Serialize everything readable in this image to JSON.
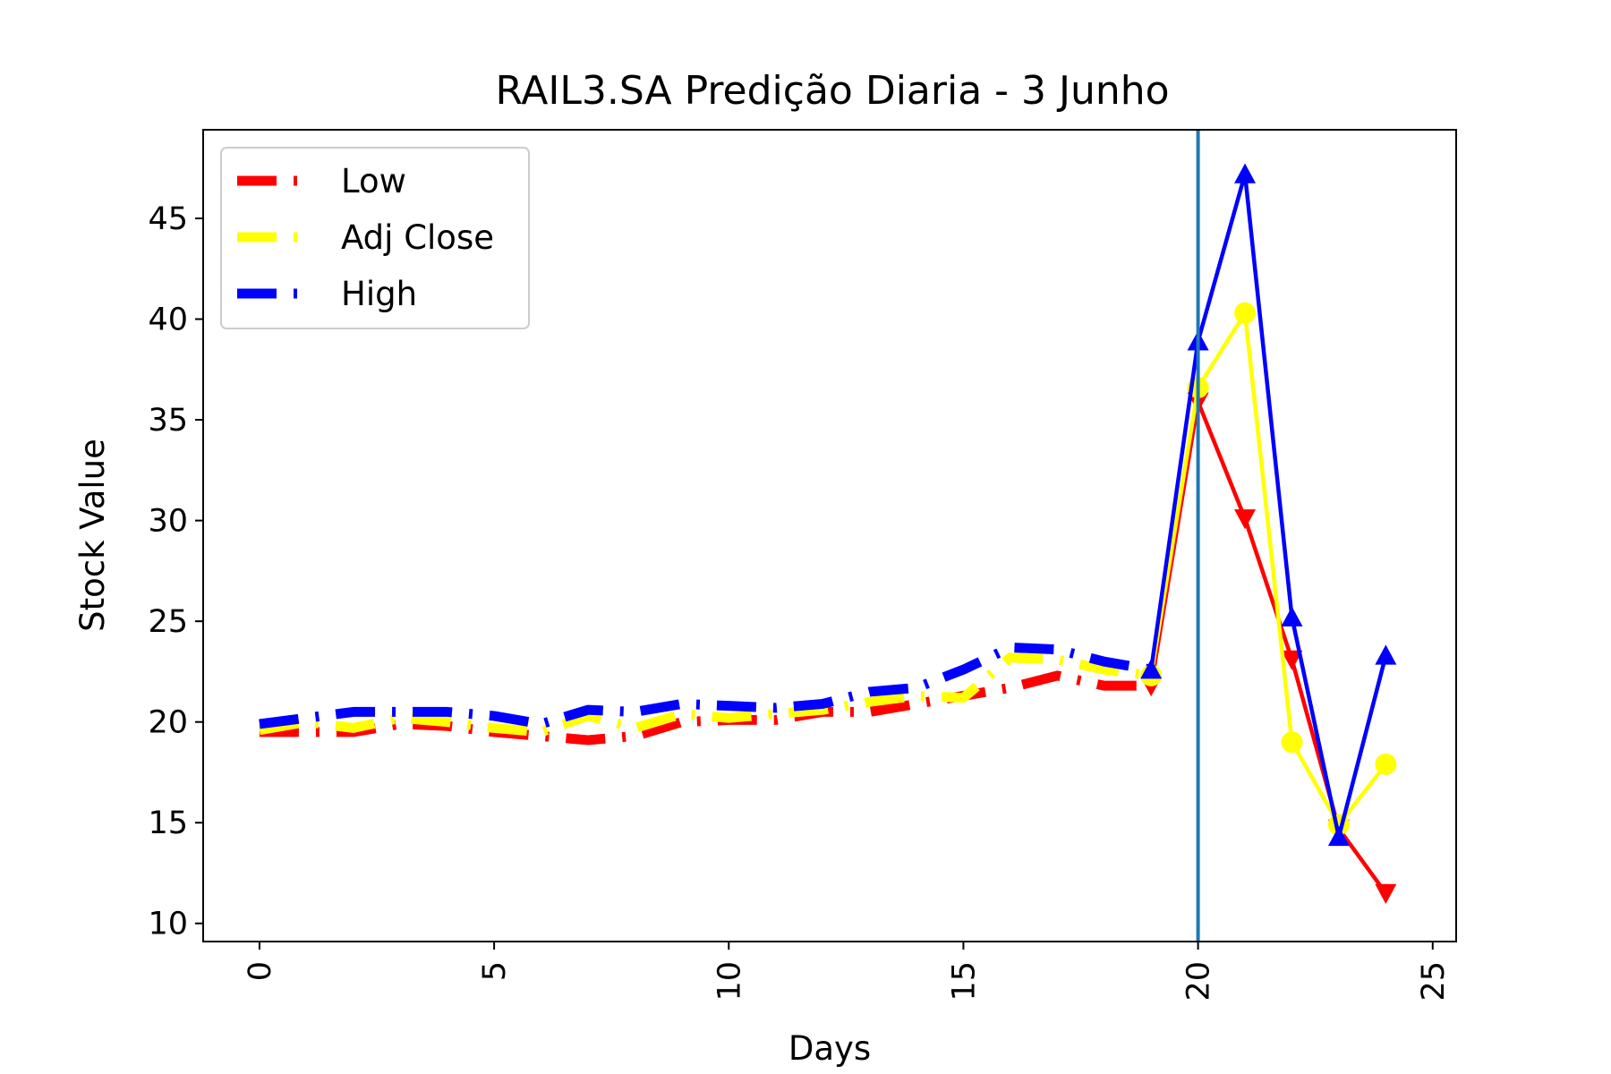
{
  "chart_data": {
    "type": "line",
    "title": "RAIL3.SA Predição Diaria - 3 Junho",
    "xlabel": "Days",
    "ylabel": "Stock Value",
    "xlim": [
      -1.2,
      25.5
    ],
    "ylim": [
      9.1,
      49.4
    ],
    "xticks": [
      "0",
      "5",
      "10",
      "15",
      "20",
      "25"
    ],
    "yticks": [
      "10",
      "15",
      "20",
      "25",
      "30",
      "35",
      "40",
      "45"
    ],
    "vline_x": 20,
    "vline_color": "#1f77b4",
    "legend_position": "upper-left",
    "split_index": 19,
    "series": [
      {
        "name": "Low",
        "color": "#ff0000",
        "marker": "triangle-down",
        "x": [
          0,
          1,
          2,
          3,
          4,
          5,
          6,
          7,
          8,
          9,
          10,
          11,
          12,
          13,
          14,
          15,
          16,
          17,
          18,
          19,
          20,
          21,
          22,
          23,
          24
        ],
        "values": [
          19.5,
          19.5,
          19.5,
          19.9,
          19.8,
          19.5,
          19.3,
          19.1,
          19.3,
          20.0,
          20.1,
          20.1,
          20.5,
          20.5,
          20.9,
          21.3,
          21.7,
          22.3,
          21.8,
          21.8,
          35.9,
          30.1,
          23.1,
          14.7,
          11.5
        ]
      },
      {
        "name": "Adj Close",
        "color": "#ffff00",
        "marker": "circle",
        "x": [
          0,
          1,
          2,
          3,
          4,
          5,
          6,
          7,
          8,
          9,
          10,
          11,
          12,
          13,
          14,
          15,
          16,
          17,
          18,
          19,
          20,
          21,
          22,
          23,
          24
        ],
        "values": [
          19.6,
          20.0,
          19.7,
          20.2,
          20.0,
          19.7,
          19.5,
          20.3,
          19.7,
          20.4,
          20.2,
          20.4,
          20.6,
          21.0,
          21.3,
          21.2,
          23.2,
          23.1,
          22.6,
          22.3,
          36.6,
          40.3,
          19.0,
          14.9,
          17.9
        ]
      },
      {
        "name": "High",
        "color": "#0000ff",
        "marker": "triangle-up",
        "x": [
          0,
          1,
          2,
          3,
          4,
          5,
          6,
          7,
          8,
          9,
          10,
          11,
          12,
          13,
          14,
          15,
          16,
          17,
          18,
          19,
          20,
          21,
          22,
          23,
          24
        ],
        "values": [
          19.9,
          20.2,
          20.5,
          20.5,
          20.5,
          20.3,
          19.9,
          20.6,
          20.5,
          20.9,
          20.8,
          20.7,
          20.9,
          21.5,
          21.7,
          22.6,
          23.7,
          23.6,
          23.0,
          22.6,
          38.9,
          47.2,
          25.2,
          14.3,
          23.3
        ]
      }
    ]
  }
}
